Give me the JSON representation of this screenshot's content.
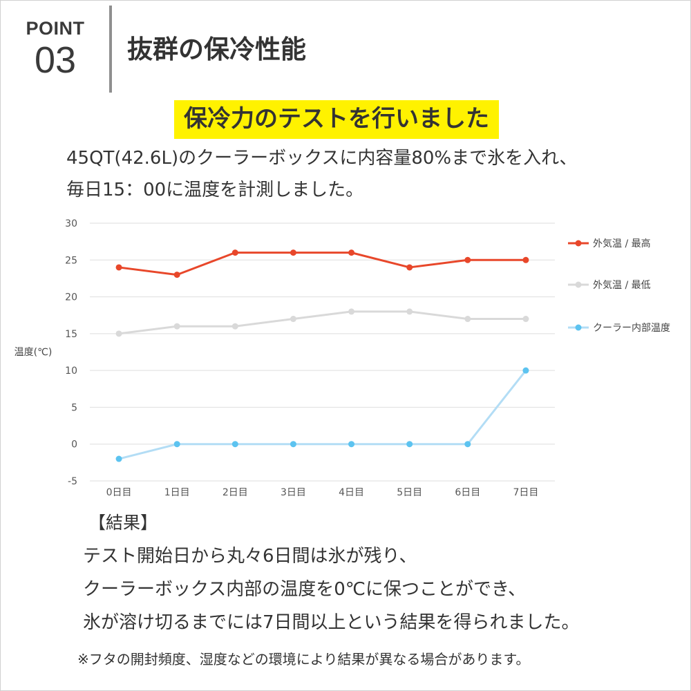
{
  "badge": {
    "label": "POINT",
    "number": "03"
  },
  "heading": "抜群の保冷性能",
  "highlight": "保冷力のテストを行いました",
  "description": [
    "45QT(42.6L)のクーラーボックスに内容量80%まで氷を入れ、",
    "毎日15：00に温度を計測しました。"
  ],
  "chart_data": {
    "type": "line",
    "title": "",
    "xlabel": "",
    "ylabel": "温度(℃)",
    "categories": [
      "0日目",
      "1日目",
      "2日目",
      "3日目",
      "4日目",
      "5日目",
      "6日目",
      "7日目"
    ],
    "ylim": [
      -5,
      30
    ],
    "yticks": [
      "30",
      "25",
      "20",
      "15",
      "10",
      "5",
      "0",
      "-5"
    ],
    "grid": true,
    "legend_position": "right",
    "series": [
      {
        "name": "外気温 / 最高",
        "color": "#e8472a",
        "values": [
          24,
          23,
          26,
          26,
          26,
          24,
          25,
          25
        ]
      },
      {
        "name": "外気温 / 最低",
        "color": "#d9d9d9",
        "values": [
          15,
          16,
          16,
          17,
          18,
          18,
          17,
          17
        ]
      },
      {
        "name": "クーラー内部温度",
        "color": "#5cc3f0",
        "line_color": "#b3ddf5",
        "values": [
          -2,
          0,
          0,
          0,
          0,
          0,
          0,
          10
        ]
      }
    ]
  },
  "result": {
    "title": "【結果】",
    "lines": [
      "テスト開始日から丸々6日間は氷が残り、",
      "クーラーボックス内部の温度を0℃に保つことができ、",
      "氷が溶け切るまでには7日間以上という結果を得られました。"
    ]
  },
  "note": "※フタの開封頻度、湿度などの環境により結果が異なる場合があります。"
}
